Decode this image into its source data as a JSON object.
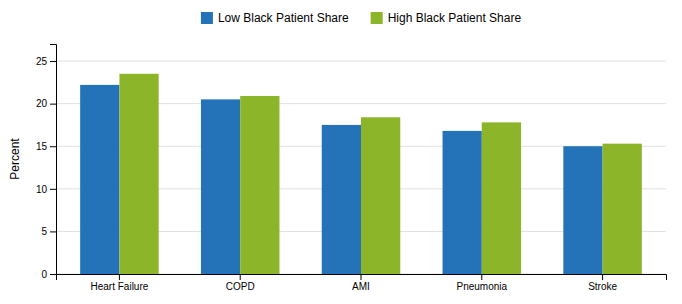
{
  "chart_data": {
    "type": "bar",
    "categories": [
      "Heart Failure",
      "COPD",
      "AMI",
      "Pneumonia",
      "Stroke"
    ],
    "series": [
      {
        "name": "Low Black Patient Share",
        "color": "#2472B8",
        "values": [
          22.2,
          20.5,
          17.5,
          16.8,
          15.0
        ]
      },
      {
        "name": "High Black Patient Share",
        "color": "#8DB52A",
        "values": [
          23.5,
          20.9,
          18.4,
          17.8,
          15.3
        ]
      }
    ],
    "ylabel": "Percent",
    "ylim": [
      0,
      27
    ],
    "yticks": [
      0,
      5,
      10,
      15,
      20,
      25
    ],
    "grid": true,
    "legend": "top"
  }
}
